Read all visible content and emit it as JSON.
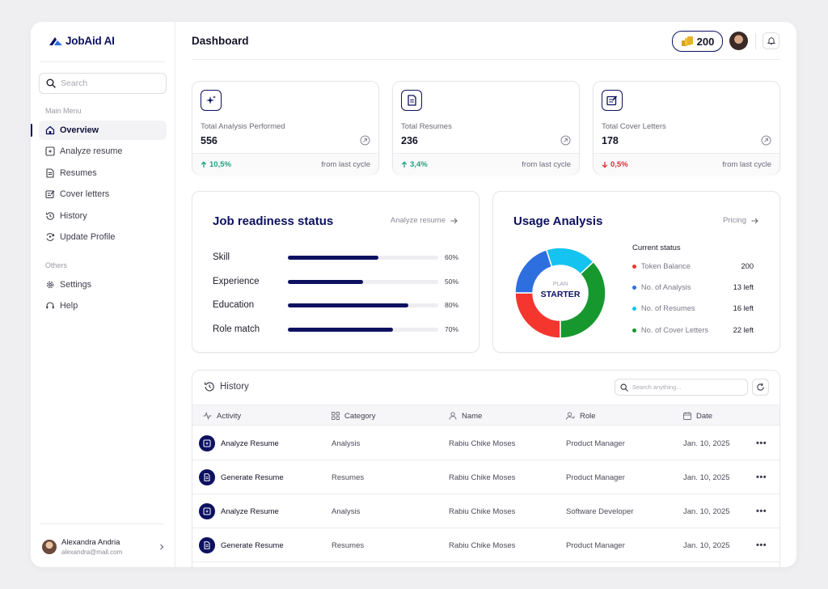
{
  "brand": {
    "name": "JobAid AI"
  },
  "sidebar": {
    "search_placeholder": "Search",
    "main_menu_label": "Main Menu",
    "main_items": [
      {
        "label": "Overview",
        "icon": "home-icon",
        "active": true
      },
      {
        "label": "Analyze resume",
        "icon": "analyze-icon"
      },
      {
        "label": "Resumes",
        "icon": "document-icon"
      },
      {
        "label": "Cover letters",
        "icon": "cover-letter-icon"
      },
      {
        "label": "History",
        "icon": "history-icon"
      },
      {
        "label": "Update Profile",
        "icon": "refresh-profile-icon"
      }
    ],
    "others_label": "Others",
    "other_items": [
      {
        "label": "Settings",
        "icon": "gear-icon"
      },
      {
        "label": "Help",
        "icon": "headset-icon"
      }
    ],
    "user": {
      "name": "Alexandra Andria",
      "email": "alexandra@mail.com"
    }
  },
  "header": {
    "title": "Dashboard",
    "token_count": "200"
  },
  "stats": [
    {
      "label": "Total Analysis Performed",
      "value": "556",
      "change": "10,5%",
      "direction": "up",
      "note": "from last cycle"
    },
    {
      "label": "Total Resumes",
      "value": "236",
      "change": "3,4%",
      "direction": "up",
      "note": "from last cycle"
    },
    {
      "label": "Total Cover Letters",
      "value": "178",
      "change": "0,5%",
      "direction": "down",
      "note": "from last cycle"
    }
  ],
  "readiness": {
    "title": "Job readiness status",
    "link": "Analyze resume",
    "items": [
      {
        "label": "Skill",
        "percent": 60,
        "percent_label": "60%"
      },
      {
        "label": "Experience",
        "percent": 50,
        "percent_label": "50%"
      },
      {
        "label": "Education",
        "percent": 80,
        "percent_label": "80%"
      },
      {
        "label": "Role match",
        "percent": 70,
        "percent_label": "70%"
      }
    ]
  },
  "usage": {
    "title": "Usage Analysis",
    "link": "Pricing",
    "plan_label": "PLAN",
    "plan_value": "STARTER",
    "status_label": "Current status",
    "legend": [
      {
        "label": "Token Balance",
        "value": "200",
        "color": "#f4362f"
      },
      {
        "label": "No. of Analysis",
        "value": "13 left",
        "color": "#2e6fe0"
      },
      {
        "label": "No. of Resumes",
        "value": "16 left",
        "color": "#14c3f0"
      },
      {
        "label": "No. of Cover Letters",
        "value": "22 left",
        "color": "#17982f"
      }
    ]
  },
  "chart_data": {
    "type": "pie",
    "title": "Usage Analysis",
    "categories": [
      "Token Balance",
      "No. of Analysis",
      "No. of Resumes",
      "No. of Cover Letters"
    ],
    "values": [
      25,
      20,
      18,
      37
    ],
    "colors": [
      "#f4362f",
      "#2e6fe0",
      "#14c3f0",
      "#17982f"
    ],
    "center_label": "PLAN STARTER"
  },
  "history": {
    "title": "History",
    "search_placeholder": "Search anything...",
    "columns": [
      "Activity",
      "Category",
      "Name",
      "Role",
      "Date"
    ],
    "rows": [
      {
        "activity": "Analyze Resume",
        "icon": "analyze-icon",
        "category": "Analysis",
        "name": "Rabiu Chike Moses",
        "role": "Product Manager",
        "date": "Jan. 10, 2025"
      },
      {
        "activity": "Generate Resume",
        "icon": "document-icon",
        "category": "Resumes",
        "name": "Rabiu Chike Moses",
        "role": "Product Manager",
        "date": "Jan. 10, 2025"
      },
      {
        "activity": "Analyze Resume",
        "icon": "analyze-icon",
        "category": "Analysis",
        "name": "Rabiu Chike Moses",
        "role": "Software Developer",
        "date": "Jan. 10, 2025"
      },
      {
        "activity": "Generate Resume",
        "icon": "document-icon",
        "category": "Resumes",
        "name": "Rabiu Chike Moses",
        "role": "Product Manager",
        "date": "Jan. 10, 2025"
      }
    ]
  }
}
